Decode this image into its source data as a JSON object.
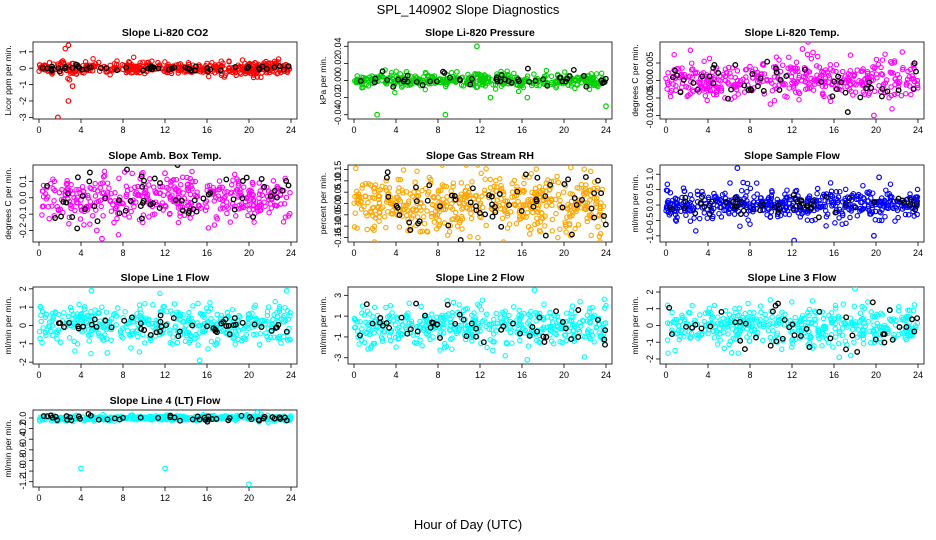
{
  "title": "SPL_140902  Slope Diagnostics",
  "xlabel": "Hour of Day (UTC)",
  "chart_data": [
    {
      "type": "scatter",
      "title": "Slope Li-820 CO2",
      "ylabel": "Licor ppm per min.",
      "color": "#ff0000",
      "xlim": [
        0,
        24
      ],
      "ylim": [
        -3.1,
        1.6
      ],
      "xticks": [
        0,
        4,
        8,
        12,
        16,
        20,
        24
      ],
      "yticks": [
        -3,
        -2,
        -1,
        0,
        1
      ],
      "ytick_labels": [
        "-3",
        "-2",
        "-1",
        "0",
        "1"
      ],
      "noise": 0.22,
      "n": 420,
      "outliers": [
        [
          2.5,
          1.2
        ],
        [
          2.8,
          1.4
        ],
        [
          2.9,
          -0.7
        ],
        [
          3.2,
          -1.1
        ],
        [
          2.8,
          -2.0
        ],
        [
          1.8,
          -3.0
        ]
      ],
      "black_noise": 0.1,
      "black_n": 55
    },
    {
      "type": "scatter",
      "title": "Slope Li-820 Pressure",
      "ylabel": "kPa per min.",
      "color": "#00d000",
      "xlim": [
        0,
        24
      ],
      "ylim": [
        -0.045,
        0.045
      ],
      "xticks": [
        0,
        4,
        8,
        12,
        16,
        20,
        24
      ],
      "yticks": [
        -0.04,
        -0.02,
        0.0,
        0.02,
        0.04
      ],
      "ytick_labels": [
        "-0.04",
        "-0.02",
        "0.00",
        "0.02",
        "0.04"
      ],
      "noise": 0.004,
      "n": 420,
      "outliers": [
        [
          11.7,
          0.04
        ],
        [
          2.2,
          -0.04
        ],
        [
          8.7,
          -0.04
        ],
        [
          24.0,
          -0.03
        ],
        [
          16.5,
          -0.02
        ],
        [
          13.0,
          -0.02
        ],
        [
          5.0,
          0.01
        ],
        [
          9.8,
          0.01
        ]
      ],
      "black_noise": 0.005,
      "black_n": 50
    },
    {
      "type": "scatter",
      "title": "Slope Li-820 Temp.",
      "ylabel": "degrees C per min.",
      "color": "#ff00ff",
      "xlim": [
        0,
        24
      ],
      "ylim": [
        -0.011,
        0.011
      ],
      "xticks": [
        0,
        4,
        8,
        12,
        16,
        20,
        24
      ],
      "yticks": [
        -0.01,
        -0.005,
        0.0,
        0.005
      ],
      "ytick_labels": [
        "-0.010",
        "-0.005",
        "0.000",
        "0.005"
      ],
      "noise": 0.003,
      "n": 420,
      "outliers": [
        [
          13.0,
          0.009
        ],
        [
          19.8,
          -0.01
        ],
        [
          14.0,
          0.008
        ]
      ],
      "black_noise": 0.003,
      "black_n": 50
    },
    {
      "type": "scatter",
      "title": "Slope Amb. Box Temp.",
      "ylabel": "degrees C per min.",
      "color": "#ff00ff",
      "xlim": [
        0,
        24
      ],
      "ylim": [
        -0.27,
        0.2
      ],
      "xticks": [
        0,
        4,
        8,
        12,
        16,
        20,
        24
      ],
      "yticks": [
        -0.2,
        -0.1,
        0.0,
        0.1
      ],
      "ytick_labels": [
        "-0.2",
        "-0.1",
        "0.0",
        "0.1"
      ],
      "noise": 0.07,
      "n": 420,
      "outliers": [
        [
          6.0,
          -0.25
        ],
        [
          5.5,
          -0.2
        ],
        [
          12.0,
          0.15
        ]
      ],
      "black_noise": 0.08,
      "black_n": 60
    },
    {
      "type": "scatter",
      "title": "Slope Gas Stream RH",
      "ylabel": "percent per min.",
      "color": "#ffa500",
      "xlim": [
        0,
        24
      ],
      "ylim": [
        -0.17,
        0.17
      ],
      "xticks": [
        0,
        4,
        8,
        12,
        16,
        20,
        24
      ],
      "yticks": [
        -0.15,
        -0.1,
        -0.05,
        0.0,
        0.05,
        0.1,
        0.15
      ],
      "ytick_labels": [
        "-0.15",
        "-0.10",
        "-0.05",
        "0.00",
        "0.05",
        "0.10",
        "0.15"
      ],
      "noise": 0.065,
      "n": 520,
      "outliers": [],
      "black_noise": 0.07,
      "black_n": 60
    },
    {
      "type": "scatter",
      "title": "Slope Sample Flow",
      "ylabel": "ml/min per min.",
      "color": "#0000ff",
      "xlim": [
        0,
        24
      ],
      "ylim": [
        -1.2,
        1.3
      ],
      "xticks": [
        0,
        4,
        8,
        12,
        16,
        20,
        24
      ],
      "yticks": [
        -1.0,
        -0.5,
        0.0,
        0.5,
        1.0
      ],
      "ytick_labels": [
        "-1.0",
        "-0.5",
        "0.0",
        "0.5",
        "1.0"
      ],
      "noise": 0.25,
      "n": 500,
      "outliers": [
        [
          6.8,
          1.2
        ],
        [
          12.2,
          -1.15
        ],
        [
          20.3,
          0.9
        ],
        [
          19.8,
          -1.0
        ]
      ],
      "black_noise": 0.15,
      "black_n": 55
    },
    {
      "type": "scatter",
      "title": "Slope Line 1 Flow",
      "ylabel": "ml/min per min.",
      "color": "#00ffff",
      "xlim": [
        0,
        24
      ],
      "ylim": [
        -2.1,
        2.1
      ],
      "xticks": [
        0,
        4,
        8,
        12,
        16,
        20,
        24
      ],
      "yticks": [
        -2,
        -1,
        0,
        1,
        2
      ],
      "ytick_labels": [
        "-2",
        "-1",
        "0",
        "1",
        "2"
      ],
      "noise": 0.55,
      "n": 430,
      "outliers": [
        [
          5.0,
          1.9
        ],
        [
          23.6,
          1.9
        ],
        [
          15.3,
          -1.9
        ],
        [
          6.5,
          -1.5
        ]
      ],
      "black_noise": 0.25,
      "black_n": 50
    },
    {
      "type": "scatter",
      "title": "Slope Line 2 Flow",
      "ylabel": "ml/min per min.",
      "color": "#00ffff",
      "xlim": [
        0,
        24
      ],
      "ylim": [
        -3.6,
        3.8
      ],
      "xticks": [
        0,
        4,
        8,
        12,
        16,
        20,
        24
      ],
      "yticks": [
        -3,
        -1,
        1,
        3
      ],
      "ytick_labels": [
        "-3",
        "-1",
        "1",
        "3"
      ],
      "noise": 1.0,
      "n": 430,
      "outliers": [
        [
          17.2,
          3.5
        ],
        [
          16.5,
          -3.2
        ]
      ],
      "black_noise": 0.9,
      "black_n": 50
    },
    {
      "type": "scatter",
      "title": "Slope Line 3 Flow",
      "ylabel": "ml/min per min.",
      "color": "#00ffff",
      "xlim": [
        0,
        24
      ],
      "ylim": [
        -2.3,
        2.3
      ],
      "xticks": [
        0,
        4,
        8,
        12,
        16,
        20,
        24
      ],
      "yticks": [
        -2,
        -1,
        0,
        1,
        2
      ],
      "ytick_labels": [
        "-2",
        "-1",
        "0",
        "1",
        "2"
      ],
      "noise": 0.6,
      "n": 430,
      "outliers": [
        [
          18.0,
          2.2
        ],
        [
          16.5,
          -1.9
        ]
      ],
      "black_noise": 0.8,
      "black_n": 45
    },
    {
      "type": "scatter",
      "title": "Slope Line 4 (LT) Flow",
      "ylabel": "ml/min per min.",
      "color": "#00ffff",
      "xlim": [
        0,
        24
      ],
      "ylim": [
        -1.3,
        0.15
      ],
      "xticks": [
        0,
        4,
        8,
        12,
        16,
        20,
        24
      ],
      "yticks": [
        -1.2,
        -1.0,
        -0.8,
        -0.6,
        -0.4,
        -0.2,
        0.0
      ],
      "ytick_labels": [
        "-1.2",
        "-1.0",
        "-0.8",
        "-0.6",
        "-0.4",
        "-0.2",
        "0.0"
      ],
      "noise": 0.025,
      "n": 380,
      "outliers": [
        [
          4.0,
          -0.95
        ],
        [
          12.0,
          -0.95
        ],
        [
          20.0,
          -1.25
        ],
        [
          20.8,
          0.1
        ]
      ],
      "black_noise": 0.03,
      "black_n": 50
    }
  ]
}
